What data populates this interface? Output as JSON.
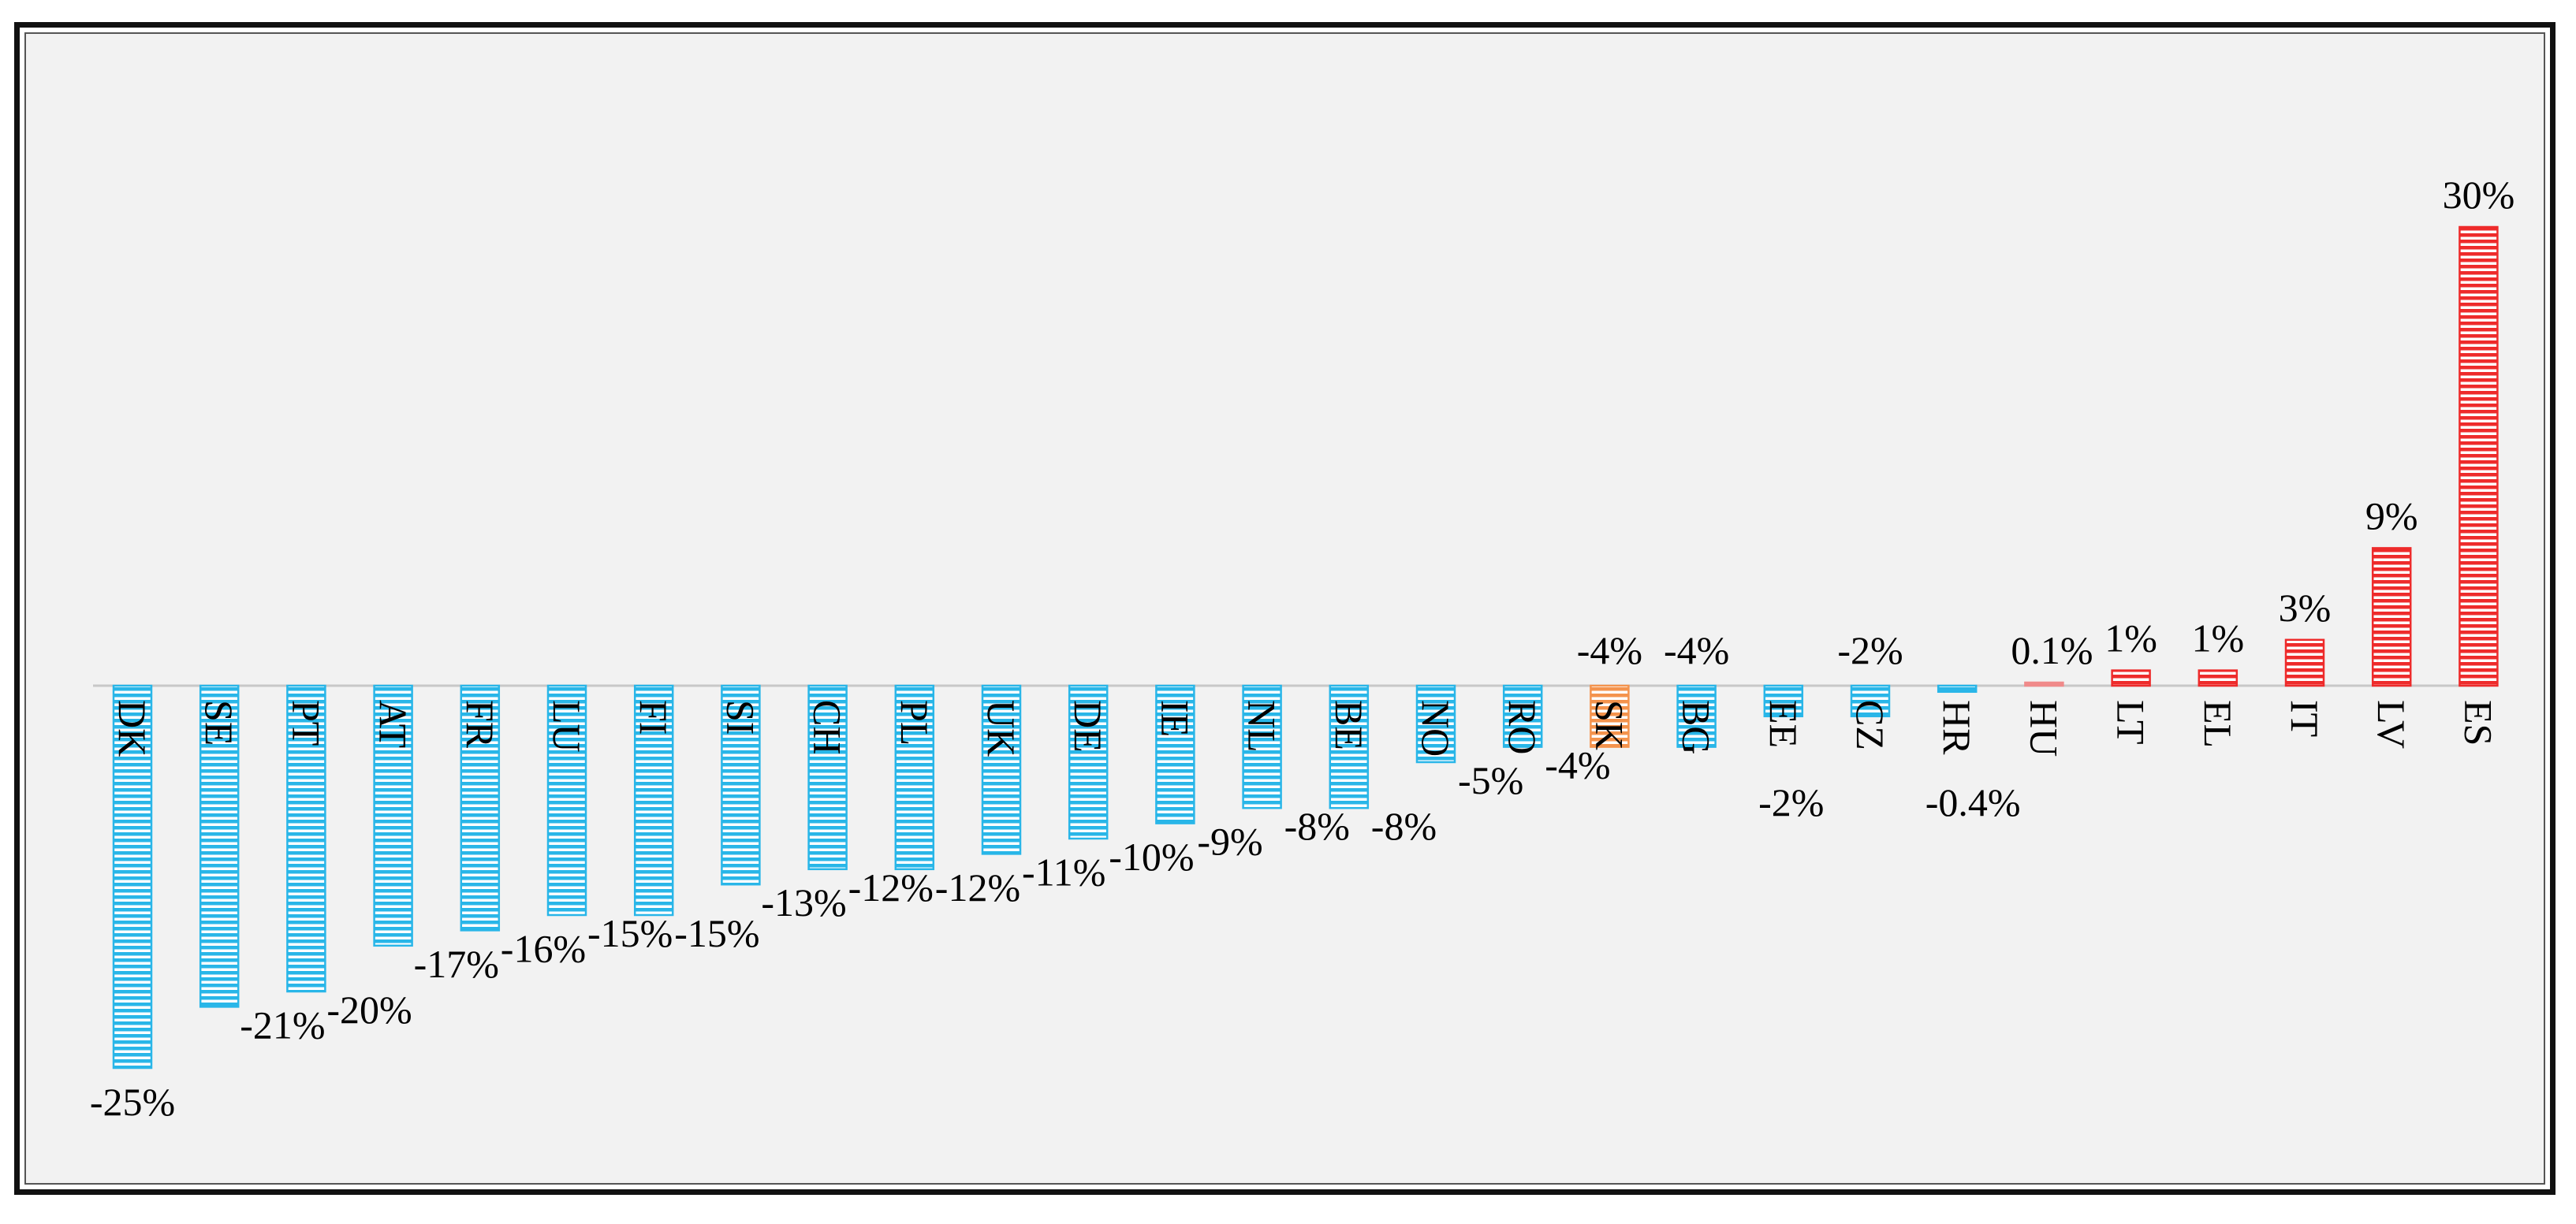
{
  "chart_data": {
    "type": "bar",
    "categories": [
      "DK",
      "SE",
      "PT",
      "AT",
      "FR",
      "LU",
      "FI",
      "SI",
      "CH",
      "PL",
      "UK",
      "DE",
      "IE",
      "NL",
      "BE",
      "NO",
      "RO",
      "SK",
      "BG",
      "EE",
      "CZ",
      "HR",
      "HU",
      "LT",
      "EL",
      "IT",
      "LV",
      "ES"
    ],
    "values": [
      -25,
      -21,
      -20,
      -17,
      -16,
      -15,
      -15,
      -13,
      -12,
      -12,
      -11,
      -10,
      -9,
      -8,
      -8,
      -5,
      -4,
      -4,
      -4,
      -2,
      -2,
      -0.4,
      0.1,
      1,
      1,
      3,
      9,
      30
    ],
    "value_labels": [
      "-25%",
      "-21%",
      "-20%",
      "-17%",
      "-16%",
      "-15%",
      "-15%",
      "-13%",
      "-12%",
      "-12%",
      "-11%",
      "-10%",
      "-9%",
      "-8%",
      "-8%",
      "-5%",
      "-4%",
      "-4%",
      "-4%",
      "-2%",
      "-2%",
      "-0.4%",
      "0.1%",
      "1%",
      "1%",
      "3%",
      "9%",
      "30%"
    ],
    "ylim": [
      -28,
      33
    ],
    "grid": false,
    "colors": {
      "negative": "#29b6e8",
      "positive": "#ee2b2b",
      "highlight": "#f4934d",
      "near_zero_positive": "#f08a8a",
      "axis": "#c8c8c8"
    },
    "highlight_category": "SK"
  }
}
